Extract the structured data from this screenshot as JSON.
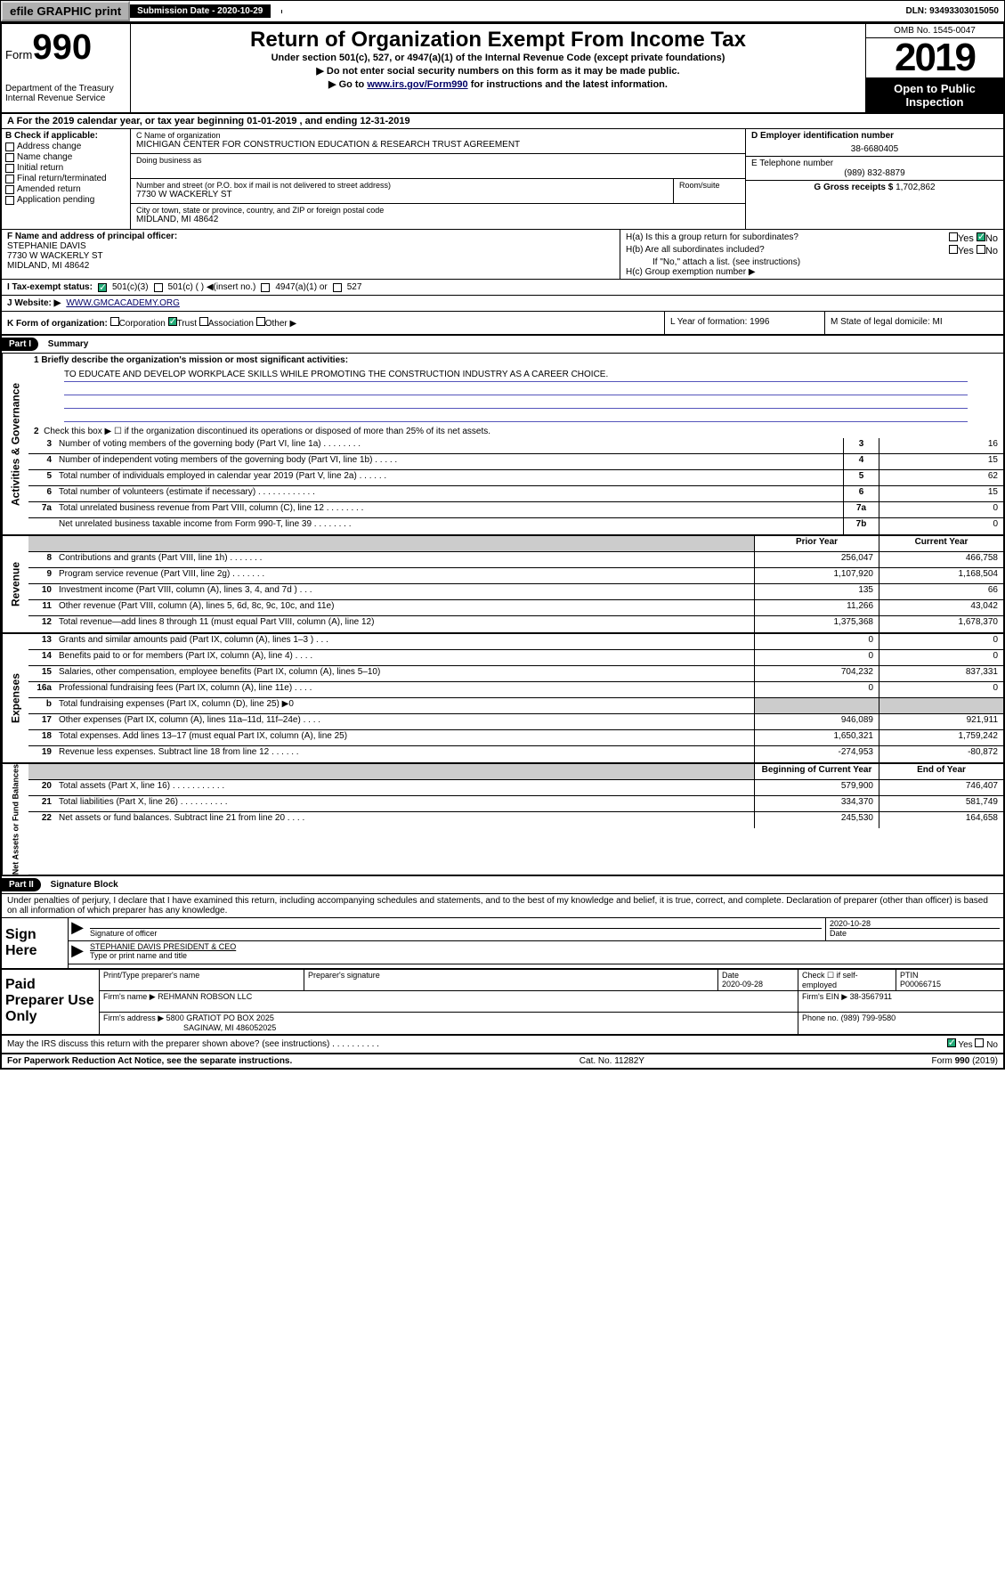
{
  "topbar": {
    "efile": "efile GRAPHIC print",
    "submission": "Submission Date - 2020-10-29",
    "dln": "DLN: 93493303015050"
  },
  "header": {
    "form_label": "Form",
    "form_num": "990",
    "dept": "Department of the Treasury\nInternal Revenue Service",
    "title": "Return of Organization Exempt From Income Tax",
    "subtitle": "Under section 501(c), 527, or 4947(a)(1) of the Internal Revenue Code (except private foundations)",
    "line1": "▶ Do not enter social security numbers on this form as it may be made public.",
    "line2_pre": "▶ Go to ",
    "line2_link": "www.irs.gov/Form990",
    "line2_post": " for instructions and the latest information.",
    "omb": "OMB No. 1545-0047",
    "year": "2019",
    "inspect": "Open to Public Inspection"
  },
  "period": "A For the 2019 calendar year, or tax year beginning 01-01-2019    , and ending 12-31-2019",
  "box_b": {
    "title": "B Check if applicable:",
    "opts": [
      "Address change",
      "Name change",
      "Initial return",
      "Final return/terminated",
      "Amended return",
      "Application pending"
    ]
  },
  "box_c": {
    "name_lbl": "C Name of organization",
    "name": "MICHIGAN CENTER FOR CONSTRUCTION EDUCATION & RESEARCH TRUST AGREEMENT",
    "dba_lbl": "Doing business as",
    "addr_lbl": "Number and street (or P.O. box if mail is not delivered to street address)",
    "addr": "7730 W WACKERLY ST",
    "room_lbl": "Room/suite",
    "city_lbl": "City or town, state or province, country, and ZIP or foreign postal code",
    "city": "MIDLAND, MI  48642"
  },
  "box_d": {
    "lbl": "D Employer identification number",
    "val": "38-6680405"
  },
  "box_e": {
    "lbl": "E Telephone number",
    "val": "(989) 832-8879"
  },
  "box_g": {
    "lbl": "G Gross receipts $",
    "val": "1,702,862"
  },
  "box_f": {
    "lbl": "F Name and address of principal officer:",
    "name": "STEPHANIE DAVIS",
    "addr1": "7730 W WACKERLY ST",
    "addr2": "MIDLAND, MI  48642"
  },
  "box_h": {
    "a": "H(a)  Is this a group return for subordinates?",
    "b": "H(b)  Are all subordinates included?",
    "note": "If \"No,\" attach a list. (see instructions)",
    "c": "H(c)  Group exemption number ▶",
    "yes": "Yes",
    "no": "No"
  },
  "row_i": {
    "lbl": "I  Tax-exempt status:",
    "o1": "501(c)(3)",
    "o2": "501(c) (  ) ◀(insert no.)",
    "o3": "4947(a)(1) or",
    "o4": "527"
  },
  "row_j": {
    "lbl": "J  Website: ▶",
    "val": "WWW.GMCACADEMY.ORG"
  },
  "row_k": {
    "lbl": "K Form of organization:",
    "o1": "Corporation",
    "o2": "Trust",
    "o3": "Association",
    "o4": "Other ▶"
  },
  "row_l": "L Year of formation: 1996",
  "row_m": "M State of legal domicile: MI",
  "part1": {
    "header": "Part I",
    "title": "Summary",
    "q1": "1  Briefly describe the organization's mission or most significant activities:",
    "mission": "TO EDUCATE AND DEVELOP WORKPLACE SKILLS WHILE PROMOTING THE CONSTRUCTION INDUSTRY AS A CAREER CHOICE.",
    "q2": "Check this box ▶ ☐  if the organization discontinued its operations or disposed of more than 25% of its net assets.",
    "lines_gov": [
      {
        "n": "3",
        "t": "Number of voting members of the governing body (Part VI, line 1a)   .    .    .    .    .    .    .    .",
        "b": "3",
        "v": "16"
      },
      {
        "n": "4",
        "t": "Number of independent voting members of the governing body (Part VI, line 1b)   .    .    .    .    .",
        "b": "4",
        "v": "15"
      },
      {
        "n": "5",
        "t": "Total number of individuals employed in calendar year 2019 (Part V, line 2a)   .    .    .    .    .    .",
        "b": "5",
        "v": "62"
      },
      {
        "n": "6",
        "t": "Total number of volunteers (estimate if necessary)   .    .    .    .    .    .    .    .    .    .    .    .",
        "b": "6",
        "v": "15"
      },
      {
        "n": "7a",
        "t": "Total unrelated business revenue from Part VIII, column (C), line 12   .    .    .    .    .    .    .    .",
        "b": "7a",
        "v": "0"
      },
      {
        "n": "",
        "t": "Net unrelated business taxable income from Form 990-T, line 39   .    .    .    .    .    .    .    .",
        "b": "7b",
        "v": "0"
      }
    ],
    "col_prior": "Prior Year",
    "col_current": "Current Year",
    "lines_rev": [
      {
        "n": "8",
        "t": "Contributions and grants (Part VIII, line 1h)   .    .    .    .    .    .    .",
        "p": "256,047",
        "c": "466,758"
      },
      {
        "n": "9",
        "t": "Program service revenue (Part VIII, line 2g)   .    .    .    .    .    .    .",
        "p": "1,107,920",
        "c": "1,168,504"
      },
      {
        "n": "10",
        "t": "Investment income (Part VIII, column (A), lines 3, 4, and 7d )   .    .    .",
        "p": "135",
        "c": "66"
      },
      {
        "n": "11",
        "t": "Other revenue (Part VIII, column (A), lines 5, 6d, 8c, 9c, 10c, and 11e)",
        "p": "11,266",
        "c": "43,042"
      },
      {
        "n": "12",
        "t": "Total revenue—add lines 8 through 11 (must equal Part VIII, column (A), line 12)",
        "p": "1,375,368",
        "c": "1,678,370"
      }
    ],
    "lines_exp": [
      {
        "n": "13",
        "t": "Grants and similar amounts paid (Part IX, column (A), lines 1–3 )   .    .    .",
        "p": "0",
        "c": "0"
      },
      {
        "n": "14",
        "t": "Benefits paid to or for members (Part IX, column (A), line 4)   .    .    .    .",
        "p": "0",
        "c": "0"
      },
      {
        "n": "15",
        "t": "Salaries, other compensation, employee benefits (Part IX, column (A), lines 5–10)",
        "p": "704,232",
        "c": "837,331"
      },
      {
        "n": "16a",
        "t": "Professional fundraising fees (Part IX, column (A), line 11e)   .    .    .    .",
        "p": "0",
        "c": "0"
      },
      {
        "n": "b",
        "t": "Total fundraising expenses (Part IX, column (D), line 25) ▶0",
        "p": "",
        "c": "",
        "shade": true
      },
      {
        "n": "17",
        "t": "Other expenses (Part IX, column (A), lines 11a–11d, 11f–24e)   .    .    .    .",
        "p": "946,089",
        "c": "921,911"
      },
      {
        "n": "18",
        "t": "Total expenses. Add lines 13–17 (must equal Part IX, column (A), line 25)",
        "p": "1,650,321",
        "c": "1,759,242"
      },
      {
        "n": "19",
        "t": "Revenue less expenses. Subtract line 18 from line 12   .    .    .    .    .    .",
        "p": "-274,953",
        "c": "-80,872"
      }
    ],
    "col_begin": "Beginning of Current Year",
    "col_end": "End of Year",
    "lines_net": [
      {
        "n": "20",
        "t": "Total assets (Part X, line 16)   .    .    .    .    .    .    .    .    .    .    .",
        "p": "579,900",
        "c": "746,407"
      },
      {
        "n": "21",
        "t": "Total liabilities (Part X, line 26)   .    .    .    .    .    .    .    .    .    .",
        "p": "334,370",
        "c": "581,749"
      },
      {
        "n": "22",
        "t": "Net assets or fund balances. Subtract line 21 from line 20   .    .    .    .",
        "p": "245,530",
        "c": "164,658"
      }
    ],
    "side_gov": "Activities & Governance",
    "side_rev": "Revenue",
    "side_exp": "Expenses",
    "side_net": "Net Assets or Fund Balances"
  },
  "part2": {
    "header": "Part II",
    "title": "Signature Block",
    "perjury": "Under penalties of perjury, I declare that I have examined this return, including accompanying schedules and statements, and to the best of my knowledge and belief, it is true, correct, and complete. Declaration of preparer (other than officer) is based on all information of which preparer has any knowledge.",
    "sign_here": "Sign Here",
    "sig_officer": "Signature of officer",
    "sig_date": "2020-10-28",
    "date_lbl": "Date",
    "officer_name": "STEPHANIE DAVIS  PRESIDENT & CEO",
    "name_lbl": "Type or print name and title",
    "paid": "Paid Preparer Use Only",
    "prep_name_lbl": "Print/Type preparer's name",
    "prep_sig_lbl": "Preparer's signature",
    "prep_date_lbl": "Date",
    "prep_date": "2020-09-28",
    "self_emp": "Check ☐ if self-employed",
    "ptin_lbl": "PTIN",
    "ptin": "P00066715",
    "firm_name_lbl": "Firm's name    ▶",
    "firm_name": "REHMANN ROBSON LLC",
    "firm_ein_lbl": "Firm's EIN ▶",
    "firm_ein": "38-3567911",
    "firm_addr_lbl": "Firm's address ▶",
    "firm_addr": "5800 GRATIOT PO BOX 2025",
    "firm_city": "SAGINAW, MI  486052025",
    "phone_lbl": "Phone no.",
    "phone": "(989) 799-9580",
    "discuss": "May the IRS discuss this return with the preparer shown above? (see instructions)   .    .    .    .    .    .    .    .    .    .",
    "yes": "Yes",
    "no": "No"
  },
  "footer": {
    "paperwork": "For Paperwork Reduction Act Notice, see the separate instructions.",
    "cat": "Cat. No. 11282Y",
    "form": "Form 990 (2019)"
  },
  "colors": {
    "rule_blue": "#5566bb",
    "check_green": "#22aa77"
  }
}
